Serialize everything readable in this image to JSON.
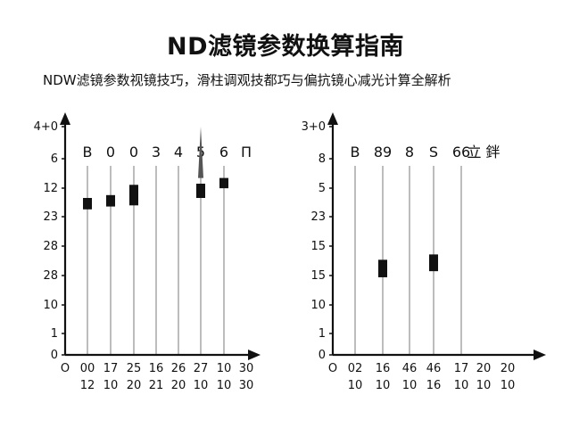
{
  "page": {
    "title": "ND滤镜参数换算指南",
    "subtitle": "NDW滤镜参数视镜技巧，滑柱调观技都巧与偏抗镜心减光计算全解析"
  },
  "chart_data": [
    {
      "type": "bar",
      "y_ticks": [
        "4+0",
        "6",
        "12",
        "23",
        "28",
        "28",
        "10",
        "1",
        "0"
      ],
      "top_labels": [
        "B",
        "0",
        "0",
        "3",
        "4",
        "5",
        "6",
        "П"
      ],
      "x_labels_row1": [
        "O",
        "00",
        "17",
        "25",
        "16",
        "26",
        "27",
        "10",
        "30"
      ],
      "x_labels_row2": [
        "12",
        "10",
        "20",
        "21",
        "20",
        "10",
        "10",
        "30"
      ],
      "bars": [
        {
          "col": 1,
          "low": 25.5,
          "high": 27.5
        },
        {
          "col": 2,
          "low": 26.0,
          "high": 28.0
        },
        {
          "col": 3,
          "low": 26.2,
          "high": 29.8
        },
        {
          "col": 6,
          "low": 27.5,
          "high": 30.0
        },
        {
          "col": 7,
          "low": 29.2,
          "high": 31.0
        }
      ],
      "spikes": [
        {
          "col": 6,
          "low": 31.0,
          "high": 40.0
        }
      ],
      "colors": {
        "bar": "#111111",
        "gridline": "#999999",
        "spike": "#555555"
      }
    },
    {
      "type": "bar",
      "y_ticks": [
        "3+0",
        "8",
        "5",
        "23",
        "15",
        "15",
        "10",
        "1",
        "0"
      ],
      "top_labels": [
        "B",
        "89",
        "8",
        "S",
        "66",
        "立 鉡"
      ],
      "x_labels_row1": [
        "O",
        "02",
        "16",
        "46",
        "46",
        "17",
        "20",
        "20"
      ],
      "x_labels_row2": [
        "10",
        "10",
        "10",
        "16",
        "10",
        "10",
        "10"
      ],
      "bars": [
        {
          "col": 2,
          "low": 10.2,
          "high": 12.5
        },
        {
          "col": 4,
          "low": 11.0,
          "high": 13.2
        }
      ],
      "spikes": [],
      "colors": {
        "bar": "#111111",
        "gridline": "#999999",
        "spike": "#555555"
      }
    }
  ]
}
